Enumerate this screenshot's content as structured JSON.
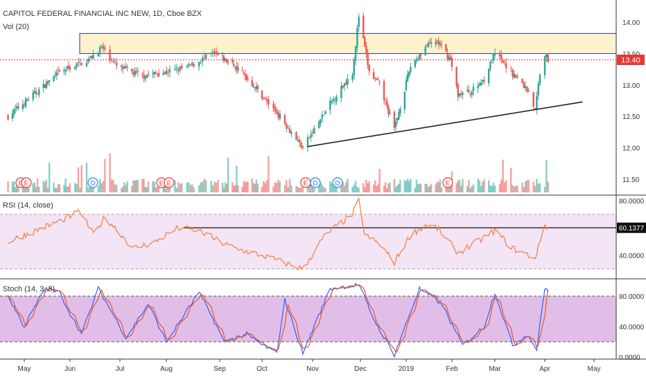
{
  "header": {
    "title": "CAPITOL FEDERAL FINANCIAL INC NEW, 1D, Cboe BZX",
    "volume_label": "Vol (20)",
    "rsi_label": "RSI (14, close)",
    "stoch_label": "Stoch (14, 3, 3)"
  },
  "colors": {
    "up": "#26a69a",
    "down": "#ef5350",
    "rsi_line": "#f57c3a",
    "stoch_k": "#2962ff",
    "stoch_d": "#f4511e",
    "zone_fill": "#fff2cc",
    "rsi_band": "#f3e5f5",
    "stoch_band": "#e1bee7",
    "price_tag": "#e53935"
  },
  "price_panel": {
    "last_price_label": "13.40",
    "ticks": [
      "14.00",
      "13.50",
      "13.00",
      "12.50",
      "12.00",
      "11.50"
    ]
  },
  "rsi_panel": {
    "value_label": "60.1377",
    "ticks": [
      "80.0000",
      "40.0000"
    ]
  },
  "stoch_panel": {
    "ticks": [
      "80.0000",
      "40.0000",
      "0.0000"
    ]
  },
  "x_axis": {
    "labels": [
      "May",
      "Jun",
      "Jul",
      "Aug",
      "Sep",
      "Oct",
      "Nov",
      "Dec",
      "2019",
      "Feb",
      "Mar",
      "Apr",
      "May"
    ]
  },
  "events": [
    "E",
    "E",
    "D",
    "E",
    "E",
    "E",
    "D",
    "D",
    "E"
  ],
  "chart_data": {
    "type": "candlestick",
    "ylim": [
      11.3,
      14.25
    ],
    "resistance_zone": [
      13.5,
      13.82
    ],
    "last_price": 13.4,
    "trendline": [
      {
        "date": "2018-10-29",
        "price": 12.02
      },
      {
        "date": "2019-04-24",
        "price": 12.73
      }
    ],
    "anchors": [
      {
        "date": "2018-04-20",
        "price": 12.5
      },
      {
        "date": "2018-05-25",
        "price": 13.2
      },
      {
        "date": "2018-06-12",
        "price": 13.4
      },
      {
        "date": "2018-06-20",
        "price": 13.6
      },
      {
        "date": "2018-06-29",
        "price": 13.3
      },
      {
        "date": "2018-07-15",
        "price": 13.15
      },
      {
        "date": "2018-08-01",
        "price": 13.2
      },
      {
        "date": "2018-08-15",
        "price": 13.3
      },
      {
        "date": "2018-08-28",
        "price": 13.5
      },
      {
        "date": "2018-09-12",
        "price": 13.3
      },
      {
        "date": "2018-09-25",
        "price": 13.0
      },
      {
        "date": "2018-10-12",
        "price": 12.5
      },
      {
        "date": "2018-10-26",
        "price": 12.0
      },
      {
        "date": "2018-11-12",
        "price": 12.7
      },
      {
        "date": "2018-11-26",
        "price": 13.2
      },
      {
        "date": "2018-11-30",
        "price": 14.1
      },
      {
        "date": "2018-12-07",
        "price": 13.2
      },
      {
        "date": "2018-12-14",
        "price": 13.0
      },
      {
        "date": "2018-12-24",
        "price": 12.3
      },
      {
        "date": "2019-01-04",
        "price": 13.3
      },
      {
        "date": "2019-01-14",
        "price": 13.6
      },
      {
        "date": "2019-01-22",
        "price": 13.7
      },
      {
        "date": "2019-01-31",
        "price": 13.4
      },
      {
        "date": "2019-02-05",
        "price": 12.85
      },
      {
        "date": "2019-02-14",
        "price": 12.9
      },
      {
        "date": "2019-02-22",
        "price": 13.1
      },
      {
        "date": "2019-03-01",
        "price": 13.5
      },
      {
        "date": "2019-03-08",
        "price": 13.3
      },
      {
        "date": "2019-03-15",
        "price": 13.1
      },
      {
        "date": "2019-03-22",
        "price": 12.9
      },
      {
        "date": "2019-03-26",
        "price": 12.6
      },
      {
        "date": "2019-03-29",
        "price": 13.2
      },
      {
        "date": "2019-04-01",
        "price": 13.5
      },
      {
        "date": "2019-04-03",
        "price": 13.4
      }
    ],
    "rsi_anchors": [
      {
        "date": "2018-04-20",
        "value": 50
      },
      {
        "date": "2018-05-25",
        "value": 65
      },
      {
        "date": "2018-06-07",
        "value": 72
      },
      {
        "date": "2018-06-15",
        "value": 55
      },
      {
        "date": "2018-06-22",
        "value": 68
      },
      {
        "date": "2018-07-10",
        "value": 45
      },
      {
        "date": "2018-07-25",
        "value": 50
      },
      {
        "date": "2018-08-08",
        "value": 60
      },
      {
        "date": "2018-08-20",
        "value": 58
      },
      {
        "date": "2018-09-01",
        "value": 50
      },
      {
        "date": "2018-09-12",
        "value": 45
      },
      {
        "date": "2018-10-01",
        "value": 40
      },
      {
        "date": "2018-10-26",
        "value": 30
      },
      {
        "date": "2018-11-09",
        "value": 55
      },
      {
        "date": "2018-11-26",
        "value": 70
      },
      {
        "date": "2018-11-30",
        "value": 80
      },
      {
        "date": "2018-12-04",
        "value": 55
      },
      {
        "date": "2018-12-14",
        "value": 48
      },
      {
        "date": "2018-12-24",
        "value": 35
      },
      {
        "date": "2019-01-04",
        "value": 55
      },
      {
        "date": "2019-01-14",
        "value": 62
      },
      {
        "date": "2019-01-22",
        "value": 60
      },
      {
        "date": "2019-02-05",
        "value": 42
      },
      {
        "date": "2019-02-15",
        "value": 48
      },
      {
        "date": "2019-03-01",
        "value": 58
      },
      {
        "date": "2019-03-12",
        "value": 45
      },
      {
        "date": "2019-03-26",
        "value": 38
      },
      {
        "date": "2019-04-01",
        "value": 62
      },
      {
        "date": "2019-04-03",
        "value": 60.14
      }
    ],
    "rsi_level": 60.1377,
    "rsi_band": [
      30,
      70
    ],
    "stoch_anchors": [
      {
        "date": "2018-04-20",
        "value": 80
      },
      {
        "date": "2018-05-01",
        "value": 40
      },
      {
        "date": "2018-05-15",
        "value": 90
      },
      {
        "date": "2018-05-25",
        "value": 85
      },
      {
        "date": "2018-06-08",
        "value": 30
      },
      {
        "date": "2018-06-18",
        "value": 90
      },
      {
        "date": "2018-07-05",
        "value": 25
      },
      {
        "date": "2018-07-20",
        "value": 70
      },
      {
        "date": "2018-08-01",
        "value": 20
      },
      {
        "date": "2018-08-20",
        "value": 85
      },
      {
        "date": "2018-09-04",
        "value": 20
      },
      {
        "date": "2018-09-20",
        "value": 30
      },
      {
        "date": "2018-10-10",
        "value": 5
      },
      {
        "date": "2018-10-15",
        "value": 75
      },
      {
        "date": "2018-10-26",
        "value": 5
      },
      {
        "date": "2018-11-12",
        "value": 90
      },
      {
        "date": "2018-11-30",
        "value": 95
      },
      {
        "date": "2018-12-10",
        "value": 50
      },
      {
        "date": "2018-12-24",
        "value": 3
      },
      {
        "date": "2019-01-10",
        "value": 90
      },
      {
        "date": "2019-01-25",
        "value": 70
      },
      {
        "date": "2019-02-08",
        "value": 15
      },
      {
        "date": "2019-02-22",
        "value": 40
      },
      {
        "date": "2019-03-01",
        "value": 85
      },
      {
        "date": "2019-03-12",
        "value": 15
      },
      {
        "date": "2019-03-21",
        "value": 30
      },
      {
        "date": "2019-03-27",
        "value": 10
      },
      {
        "date": "2019-04-01",
        "value": 90
      },
      {
        "date": "2019-04-03",
        "value": 88
      }
    ],
    "stoch_band": [
      20,
      80
    ]
  }
}
